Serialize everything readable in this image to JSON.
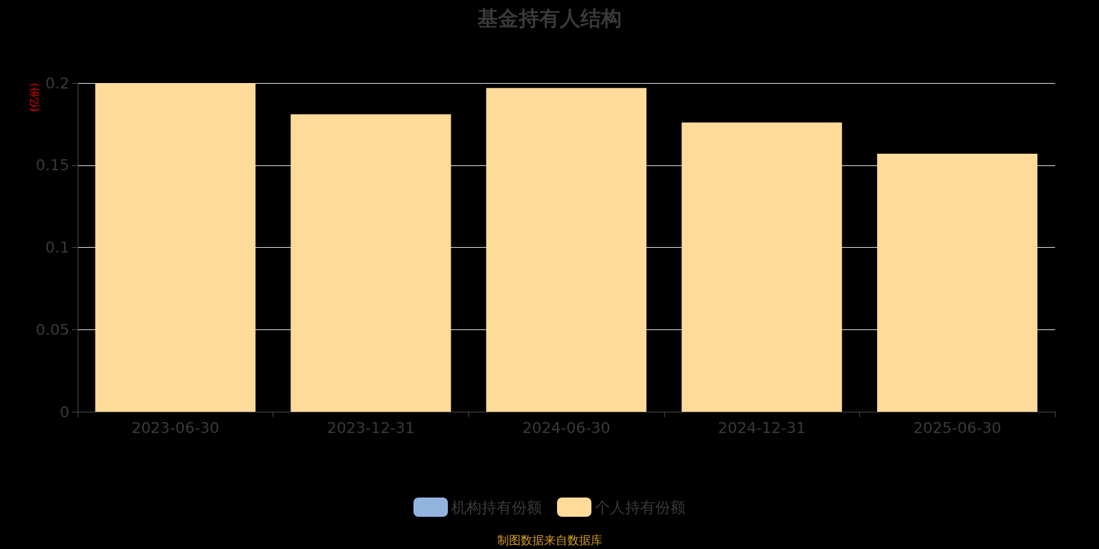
{
  "chart_data": {
    "type": "bar",
    "title": "基金持有人结构",
    "ylabel": "(亿份)",
    "categories": [
      "2023-06-30",
      "2023-12-31",
      "2024-06-30",
      "2024-12-31",
      "2025-06-30"
    ],
    "series": [
      {
        "name": "机构持有份额",
        "color": "#94b4e0",
        "values": [
          0,
          0,
          0,
          0,
          0
        ]
      },
      {
        "name": "个人持有份额",
        "color": "#ffdb9a",
        "values": [
          0.2,
          0.181,
          0.197,
          0.176,
          0.157
        ]
      }
    ],
    "stacked": true,
    "ylim": [
      0,
      0.2
    ],
    "yticks": [
      0,
      0.05,
      0.1,
      0.15,
      0.2
    ],
    "grid": "y",
    "legend": "bottom",
    "annotations": [
      "制图数据来自数据库"
    ]
  }
}
